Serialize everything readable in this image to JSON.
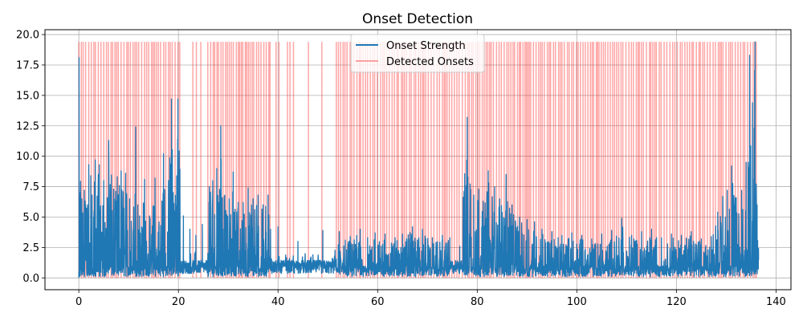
{
  "chart_data": {
    "type": "line",
    "title": "Onset Detection",
    "xlabel": "",
    "ylabel": "",
    "xlim": [
      -6.8,
      143.0
    ],
    "ylim": [
      -0.97,
      20.4
    ],
    "xticks": [
      0,
      20,
      40,
      60,
      80,
      100,
      120,
      140
    ],
    "yticks": [
      0.0,
      2.5,
      5.0,
      7.5,
      10.0,
      12.5,
      15.0,
      17.5,
      20.0
    ],
    "xtick_labels": [
      "0",
      "20",
      "40",
      "60",
      "80",
      "100",
      "120",
      "140"
    ],
    "ytick_labels": [
      "0.0",
      "2.5",
      "5.0",
      "7.5",
      "10.0",
      "12.5",
      "15.0",
      "17.5",
      "20.0"
    ],
    "grid": true,
    "legend_position": "upper center",
    "series": [
      {
        "name": "Onset Strength",
        "kind": "line",
        "color": "#1f77b4",
        "duration": 136.5,
        "peaks": [
          [
            0.05,
            18.1
          ],
          [
            0.6,
            6.5
          ],
          [
            1.1,
            7.2
          ],
          [
            2.0,
            9.3
          ],
          [
            2.4,
            8.4
          ],
          [
            3.3,
            9.7
          ],
          [
            4.1,
            9.3
          ],
          [
            5.0,
            8.0
          ],
          [
            6.0,
            11.3
          ],
          [
            7.0,
            7.3
          ],
          [
            7.7,
            8.3
          ],
          [
            8.5,
            8.8
          ],
          [
            9.4,
            8.6
          ],
          [
            10.2,
            6.5
          ],
          [
            11.4,
            12.4
          ],
          [
            12.2,
            5.1
          ],
          [
            13.2,
            8.1
          ],
          [
            14.2,
            5.1
          ],
          [
            15.3,
            8.2
          ],
          [
            16.1,
            4.6
          ],
          [
            17.0,
            10.2
          ],
          [
            18.0,
            8.0
          ],
          [
            18.6,
            14.7
          ],
          [
            19.2,
            5.5
          ],
          [
            19.9,
            14.7
          ],
          [
            21.0,
            5.1
          ],
          [
            22.3,
            4.0
          ],
          [
            23.5,
            3.5
          ],
          [
            24.8,
            4.4
          ],
          [
            26.2,
            7.5
          ],
          [
            26.9,
            8.0
          ],
          [
            27.7,
            9.0
          ],
          [
            28.5,
            12.5
          ],
          [
            29.3,
            6.8
          ],
          [
            30.2,
            6.5
          ],
          [
            31.0,
            8.7
          ],
          [
            32.0,
            6.2
          ],
          [
            33.0,
            6.2
          ],
          [
            34.0,
            7.4
          ],
          [
            35.0,
            6.5
          ],
          [
            36.0,
            6.8
          ],
          [
            37.0,
            6.0
          ],
          [
            38.0,
            6.8
          ],
          [
            38.5,
            4.0
          ],
          [
            40.0,
            4.2
          ],
          [
            42.3,
            1.6
          ],
          [
            44.0,
            3.0
          ],
          [
            47.0,
            1.9
          ],
          [
            49.0,
            3.9
          ],
          [
            51.0,
            1.6
          ],
          [
            52.3,
            3.8
          ],
          [
            53.5,
            3.1
          ],
          [
            54.5,
            3.4
          ],
          [
            56.5,
            4.0
          ],
          [
            58.0,
            3.3
          ],
          [
            59.5,
            3.7
          ],
          [
            61.5,
            3.6
          ],
          [
            63.5,
            3.3
          ],
          [
            65.0,
            3.6
          ],
          [
            67.0,
            4.2
          ],
          [
            69.0,
            4.0
          ],
          [
            71.0,
            3.3
          ],
          [
            73.0,
            3.5
          ],
          [
            74.5,
            3.3
          ],
          [
            76.5,
            2.6
          ],
          [
            78.0,
            13.2
          ],
          [
            79.3,
            6.8
          ],
          [
            80.3,
            7.3
          ],
          [
            81.2,
            6.3
          ],
          [
            82.2,
            8.8
          ],
          [
            83.5,
            7.5
          ],
          [
            84.5,
            6.5
          ],
          [
            85.8,
            8.5
          ],
          [
            87.0,
            6.0
          ],
          [
            88.5,
            5.0
          ],
          [
            90.0,
            4.8
          ],
          [
            91.5,
            4.6
          ],
          [
            93.0,
            4.0
          ],
          [
            95.0,
            3.8
          ],
          [
            97.0,
            3.5
          ],
          [
            99.0,
            3.7
          ],
          [
            101.0,
            3.5
          ],
          [
            103.0,
            3.2
          ],
          [
            105.0,
            3.6
          ],
          [
            107.0,
            3.9
          ],
          [
            109.0,
            4.9
          ],
          [
            111.0,
            3.5
          ],
          [
            113.0,
            3.8
          ],
          [
            115.0,
            4.0
          ],
          [
            117.0,
            3.3
          ],
          [
            119.0,
            3.6
          ],
          [
            121.0,
            3.5
          ],
          [
            123.0,
            3.8
          ],
          [
            125.0,
            3.2
          ],
          [
            127.0,
            3.4
          ],
          [
            128.3,
            5.4
          ],
          [
            129.3,
            6.7
          ],
          [
            130.2,
            7.2
          ],
          [
            131.1,
            9.2
          ],
          [
            132.0,
            6.6
          ],
          [
            133.1,
            7.2
          ],
          [
            134.0,
            9.5
          ],
          [
            134.7,
            18.3
          ],
          [
            135.3,
            14.4
          ],
          [
            135.8,
            19.4
          ],
          [
            136.2,
            6.0
          ]
        ]
      },
      {
        "name": "Detected Onsets",
        "kind": "vlines",
        "color": "#ff0000",
        "alpha": 0.35,
        "y_top": 19.4,
        "spacing": 0.44,
        "regions": [
          [
            0.0,
            20.3
          ],
          [
            25.9,
            38.8
          ],
          [
            51.7,
            76.4
          ],
          [
            77.0,
            136.3
          ]
        ],
        "extra_onsets": [
          22.9,
          23.6,
          24.5,
          39.6,
          40.2,
          41.9,
          42.4,
          43.1,
          46.1,
          48.8
        ]
      }
    ]
  }
}
